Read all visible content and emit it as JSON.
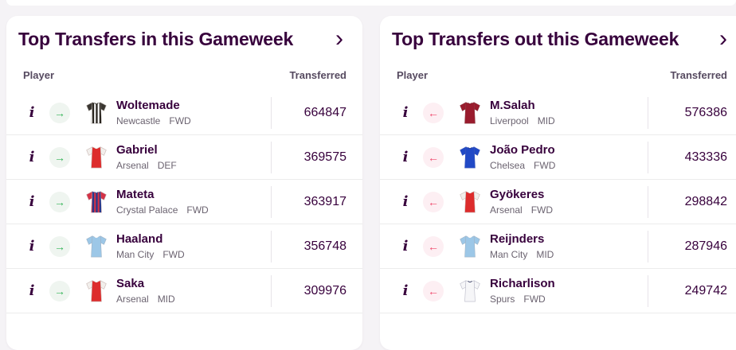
{
  "icons": {
    "info": "i",
    "chevron_right": "›",
    "arrow_in": "→",
    "arrow_out": "←"
  },
  "colors": {
    "brand_purple": "#37003c",
    "page_background": "#f5f3f6",
    "card_background": "#ffffff",
    "secondary_text": "#6b6370",
    "column_header_text": "#564a60",
    "row_divider": "#ececec",
    "transfer_in_green": "#33b457",
    "transfer_in_bg": "#eff5f0",
    "transfer_out_red": "#ef476b",
    "transfer_out_bg": "#fdeff3"
  },
  "panels": [
    {
      "title": "Top Transfers in this Gameweek",
      "direction": "in",
      "columns": {
        "player": "Player",
        "transferred": "Transferred"
      },
      "rows": [
        {
          "name": "Woltemade",
          "team": "Newcastle",
          "position": "FWD",
          "transferred": "664847",
          "shirt": {
            "team": "Newcastle",
            "body": "#ffffff",
            "stripes": "#29251f",
            "sleeves": "#3a3631",
            "collar": "#29251f",
            "outline": "#b5b0ab"
          }
        },
        {
          "name": "Gabriel",
          "team": "Arsenal",
          "position": "DEF",
          "transferred": "369575",
          "shirt": {
            "team": "Arsenal",
            "body": "#dd2c2c",
            "sleeves": "#f2efec",
            "collar": "#f2efec",
            "outline": "#c9b6b2"
          }
        },
        {
          "name": "Mateta",
          "team": "Crystal Palace",
          "position": "FWD",
          "transferred": "363917",
          "shirt": {
            "team": "Crystal Palace",
            "body": "#d53146",
            "stripes": "#27398b",
            "sleeves": "#d53146",
            "collar": "#27398b",
            "outline": "#bfa0a6"
          }
        },
        {
          "name": "Haaland",
          "team": "Man City",
          "position": "FWD",
          "transferred": "356748",
          "shirt": {
            "team": "Man City",
            "body": "#9cc7e7",
            "sleeves": "#9cc7e7",
            "collar": "#ffffff",
            "outline": "#9fb3c6"
          }
        },
        {
          "name": "Saka",
          "team": "Arsenal",
          "position": "MID",
          "transferred": "309976",
          "shirt": {
            "team": "Arsenal",
            "body": "#dd2c2c",
            "sleeves": "#f2efec",
            "collar": "#f2efec",
            "outline": "#c9b6b2"
          }
        }
      ]
    },
    {
      "title": "Top Transfers out this Gameweek",
      "direction": "out",
      "columns": {
        "player": "Player",
        "transferred": "Transferred"
      },
      "rows": [
        {
          "name": "M.Salah",
          "team": "Liverpool",
          "position": "MID",
          "transferred": "576386",
          "shirt": {
            "team": "Liverpool",
            "body": "#9a1b2d",
            "sleeves": "#9a1b2d",
            "collar": "#7d1420",
            "outline": "#8c3a42"
          }
        },
        {
          "name": "João Pedro",
          "team": "Chelsea",
          "position": "FWD",
          "transferred": "433336",
          "shirt": {
            "team": "Chelsea",
            "body": "#2149c6",
            "sleeves": "#2149c6",
            "collar": "#16328f",
            "outline": "#3a56b8"
          }
        },
        {
          "name": "Gyökeres",
          "team": "Arsenal",
          "position": "FWD",
          "transferred": "298842",
          "shirt": {
            "team": "Arsenal",
            "body": "#dd2c2c",
            "sleeves": "#f2efec",
            "collar": "#f2efec",
            "outline": "#c9b6b2"
          }
        },
        {
          "name": "Reijnders",
          "team": "Man City",
          "position": "MID",
          "transferred": "287946",
          "shirt": {
            "team": "Man City",
            "body": "#9cc7e7",
            "sleeves": "#9cc7e7",
            "collar": "#ffffff",
            "outline": "#9fb3c6"
          }
        },
        {
          "name": "Richarlison",
          "team": "Spurs",
          "position": "FWD",
          "transferred": "249742",
          "shirt": {
            "team": "Spurs",
            "body": "#f6f6f8",
            "sleeves": "#f6f6f8",
            "collar": "#252a53",
            "outline": "#b8b8c6"
          }
        }
      ]
    }
  ]
}
